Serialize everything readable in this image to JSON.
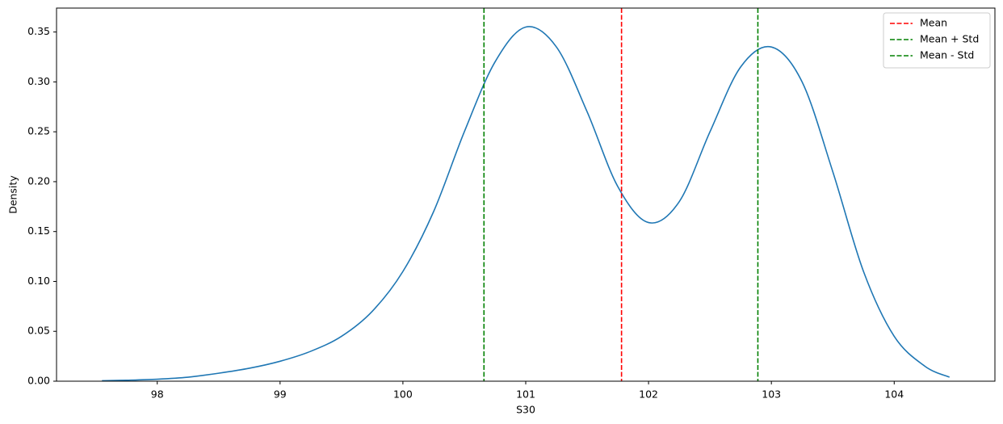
{
  "chart_data": {
    "type": "line",
    "xlabel": "S30",
    "ylabel": "Density",
    "x": [
      97.55,
      97.75,
      98,
      98.25,
      98.5,
      98.75,
      99,
      99.25,
      99.5,
      99.75,
      100,
      100.25,
      100.5,
      100.75,
      101,
      101.25,
      101.5,
      101.75,
      102,
      102.25,
      102.5,
      102.75,
      103,
      103.25,
      103.5,
      103.75,
      104,
      104.25,
      104.45
    ],
    "series": [
      {
        "color": "#1f77b4",
        "values": [
          0.0005,
          0.001,
          0.002,
          0.004,
          0.008,
          0.013,
          0.02,
          0.03,
          0.045,
          0.07,
          0.11,
          0.17,
          0.25,
          0.32,
          0.355,
          0.335,
          0.27,
          0.195,
          0.159,
          0.18,
          0.25,
          0.315,
          0.335,
          0.3,
          0.21,
          0.11,
          0.045,
          0.015,
          0.004
        ]
      }
    ],
    "vlines": [
      {
        "name": "Mean",
        "color": "#ff0000",
        "value": 101.78
      },
      {
        "name": "Mean + Std",
        "color": "#008000",
        "value": 102.89
      },
      {
        "name": "Mean - Std",
        "color": "#008000",
        "value": 100.66
      }
    ],
    "xlim": [
      97.18,
      104.82
    ],
    "ylim": [
      0,
      0.374
    ],
    "xticks": [
      98,
      99,
      100,
      101,
      102,
      103,
      104
    ],
    "yticks": [
      {
        "value": 0,
        "label": "0.00"
      },
      0.05,
      {
        "value": 0.1,
        "label": "0.10"
      },
      0.15,
      {
        "value": 0.2,
        "label": "0.20"
      },
      0.25,
      {
        "value": 0.3,
        "label": "0.30"
      },
      0.35
    ],
    "legend": "upper right"
  }
}
